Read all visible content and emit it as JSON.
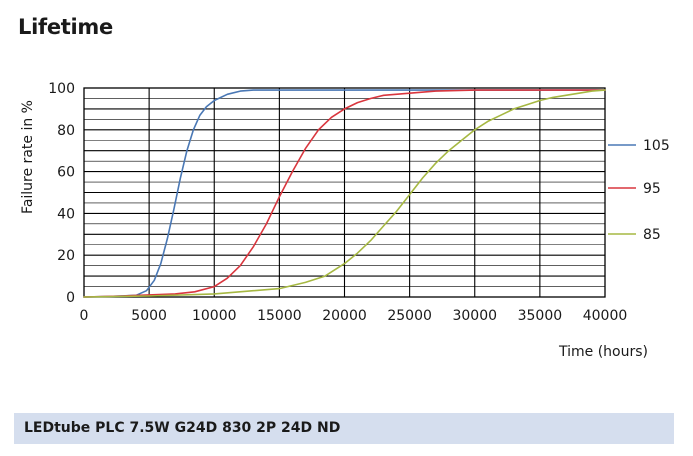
{
  "heading": "Lifetime",
  "chart_data": {
    "type": "line",
    "xlabel": "Time (hours)",
    "ylabel": "Failure rate in %",
    "xlim": [
      0,
      40000
    ],
    "ylim": [
      0,
      100
    ],
    "x_ticks": [
      0,
      5000,
      10000,
      15000,
      20000,
      25000,
      30000,
      35000,
      40000
    ],
    "y_ticks": [
      0,
      20,
      40,
      60,
      80,
      100
    ],
    "grid": true,
    "legend_position": "right",
    "series": [
      {
        "name": "105",
        "color": "#4a78b5",
        "points": [
          [
            0,
            0
          ],
          [
            2000,
            0.3
          ],
          [
            4000,
            0.8
          ],
          [
            4800,
            3
          ],
          [
            5400,
            8
          ],
          [
            5900,
            16
          ],
          [
            6400,
            28
          ],
          [
            6900,
            42
          ],
          [
            7400,
            57
          ],
          [
            7900,
            70
          ],
          [
            8400,
            80
          ],
          [
            8900,
            87
          ],
          [
            9400,
            91
          ],
          [
            10000,
            94
          ],
          [
            11000,
            97
          ],
          [
            12000,
            98.5
          ],
          [
            13000,
            99
          ],
          [
            40000,
            99
          ]
        ]
      },
      {
        "name": "95",
        "color": "#d9363e",
        "points": [
          [
            0,
            0
          ],
          [
            3000,
            0.5
          ],
          [
            5000,
            1
          ],
          [
            7000,
            1.5
          ],
          [
            8500,
            2.5
          ],
          [
            10000,
            5
          ],
          [
            11000,
            9
          ],
          [
            12000,
            15
          ],
          [
            13000,
            24
          ],
          [
            14000,
            35
          ],
          [
            15000,
            48
          ],
          [
            16000,
            60
          ],
          [
            17000,
            71
          ],
          [
            18000,
            80
          ],
          [
            19000,
            86
          ],
          [
            20000,
            90
          ],
          [
            21000,
            93
          ],
          [
            22000,
            95
          ],
          [
            23000,
            96.5
          ],
          [
            25000,
            97.5
          ],
          [
            27000,
            98.5
          ],
          [
            30000,
            99
          ],
          [
            40000,
            99
          ]
        ]
      },
      {
        "name": "85",
        "color": "#a6b842",
        "points": [
          [
            0,
            0
          ],
          [
            5000,
            0.5
          ],
          [
            10000,
            1.5
          ],
          [
            13000,
            3
          ],
          [
            15000,
            4
          ],
          [
            17000,
            7
          ],
          [
            18500,
            10
          ],
          [
            20000,
            16
          ],
          [
            21000,
            21
          ],
          [
            22000,
            27
          ],
          [
            23000,
            34
          ],
          [
            24000,
            41
          ],
          [
            25000,
            49
          ],
          [
            26000,
            57
          ],
          [
            27000,
            64
          ],
          [
            28000,
            70
          ],
          [
            29000,
            75
          ],
          [
            30000,
            80
          ],
          [
            31000,
            84
          ],
          [
            32000,
            87
          ],
          [
            33000,
            90
          ],
          [
            34000,
            92
          ],
          [
            35000,
            94
          ],
          [
            36000,
            95.5
          ],
          [
            37000,
            96.5
          ],
          [
            38000,
            97.5
          ],
          [
            39000,
            98.5
          ],
          [
            40000,
            99
          ]
        ]
      }
    ]
  },
  "footer": {
    "product_label": "LEDtube PLC 7.5W G24D 830 2P 24D ND"
  }
}
